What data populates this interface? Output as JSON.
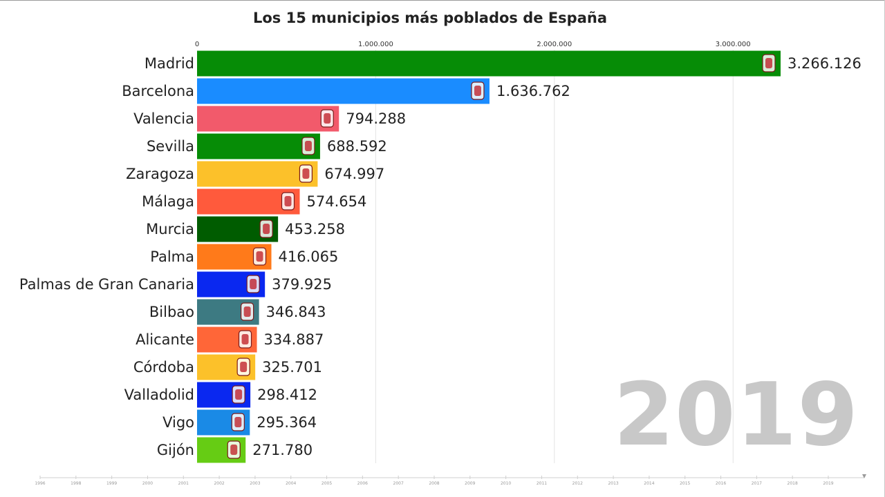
{
  "chart_data": {
    "type": "bar",
    "orientation": "horizontal",
    "title": "Los 15 municipios más poblados de España",
    "xlim": [
      0,
      3266126
    ],
    "x_ticks": [
      0,
      1000000,
      2000000,
      3000000
    ],
    "x_tick_labels": [
      "0",
      "1.000.000",
      "2.000.000",
      "3.000.000"
    ],
    "grid": true,
    "categories": [
      "Madrid",
      "Barcelona",
      "Valencia",
      "Sevilla",
      "Zaragoza",
      "Málaga",
      "Murcia",
      "Palma",
      "Palmas de Gran Canaria",
      "Bilbao",
      "Alicante",
      "Córdoba",
      "Valladolid",
      "Vigo",
      "Gijón"
    ],
    "values": [
      3266126,
      1636762,
      794288,
      688592,
      674997,
      574654,
      453258,
      416065,
      379925,
      346843,
      334887,
      325701,
      298412,
      295364,
      271780
    ],
    "value_labels": [
      "3.266.126",
      "1.636.762",
      "794.288",
      "688.592",
      "674.997",
      "574.654",
      "453.258",
      "416.065",
      "379.925",
      "346.843",
      "334.887",
      "325.701",
      "298.412",
      "295.364",
      "271.780"
    ],
    "colors": [
      "#068c06",
      "#1a8cff",
      "#f25a6b",
      "#068c06",
      "#fcc12a",
      "#ff5a3c",
      "#005c00",
      "#ff7a1a",
      "#0a28f0",
      "#3d7a82",
      "#ff6638",
      "#fcc12a",
      "#0a28f0",
      "#1a8ae6",
      "#66cc14"
    ],
    "year": "2019",
    "timeline_years": [
      "1996",
      "1998",
      "1999",
      "2000",
      "2001",
      "2002",
      "2003",
      "2004",
      "2005",
      "2006",
      "2007",
      "2008",
      "2009",
      "2010",
      "2011",
      "2012",
      "2013",
      "2014",
      "2015",
      "2016",
      "2017",
      "2018",
      "2019"
    ]
  }
}
